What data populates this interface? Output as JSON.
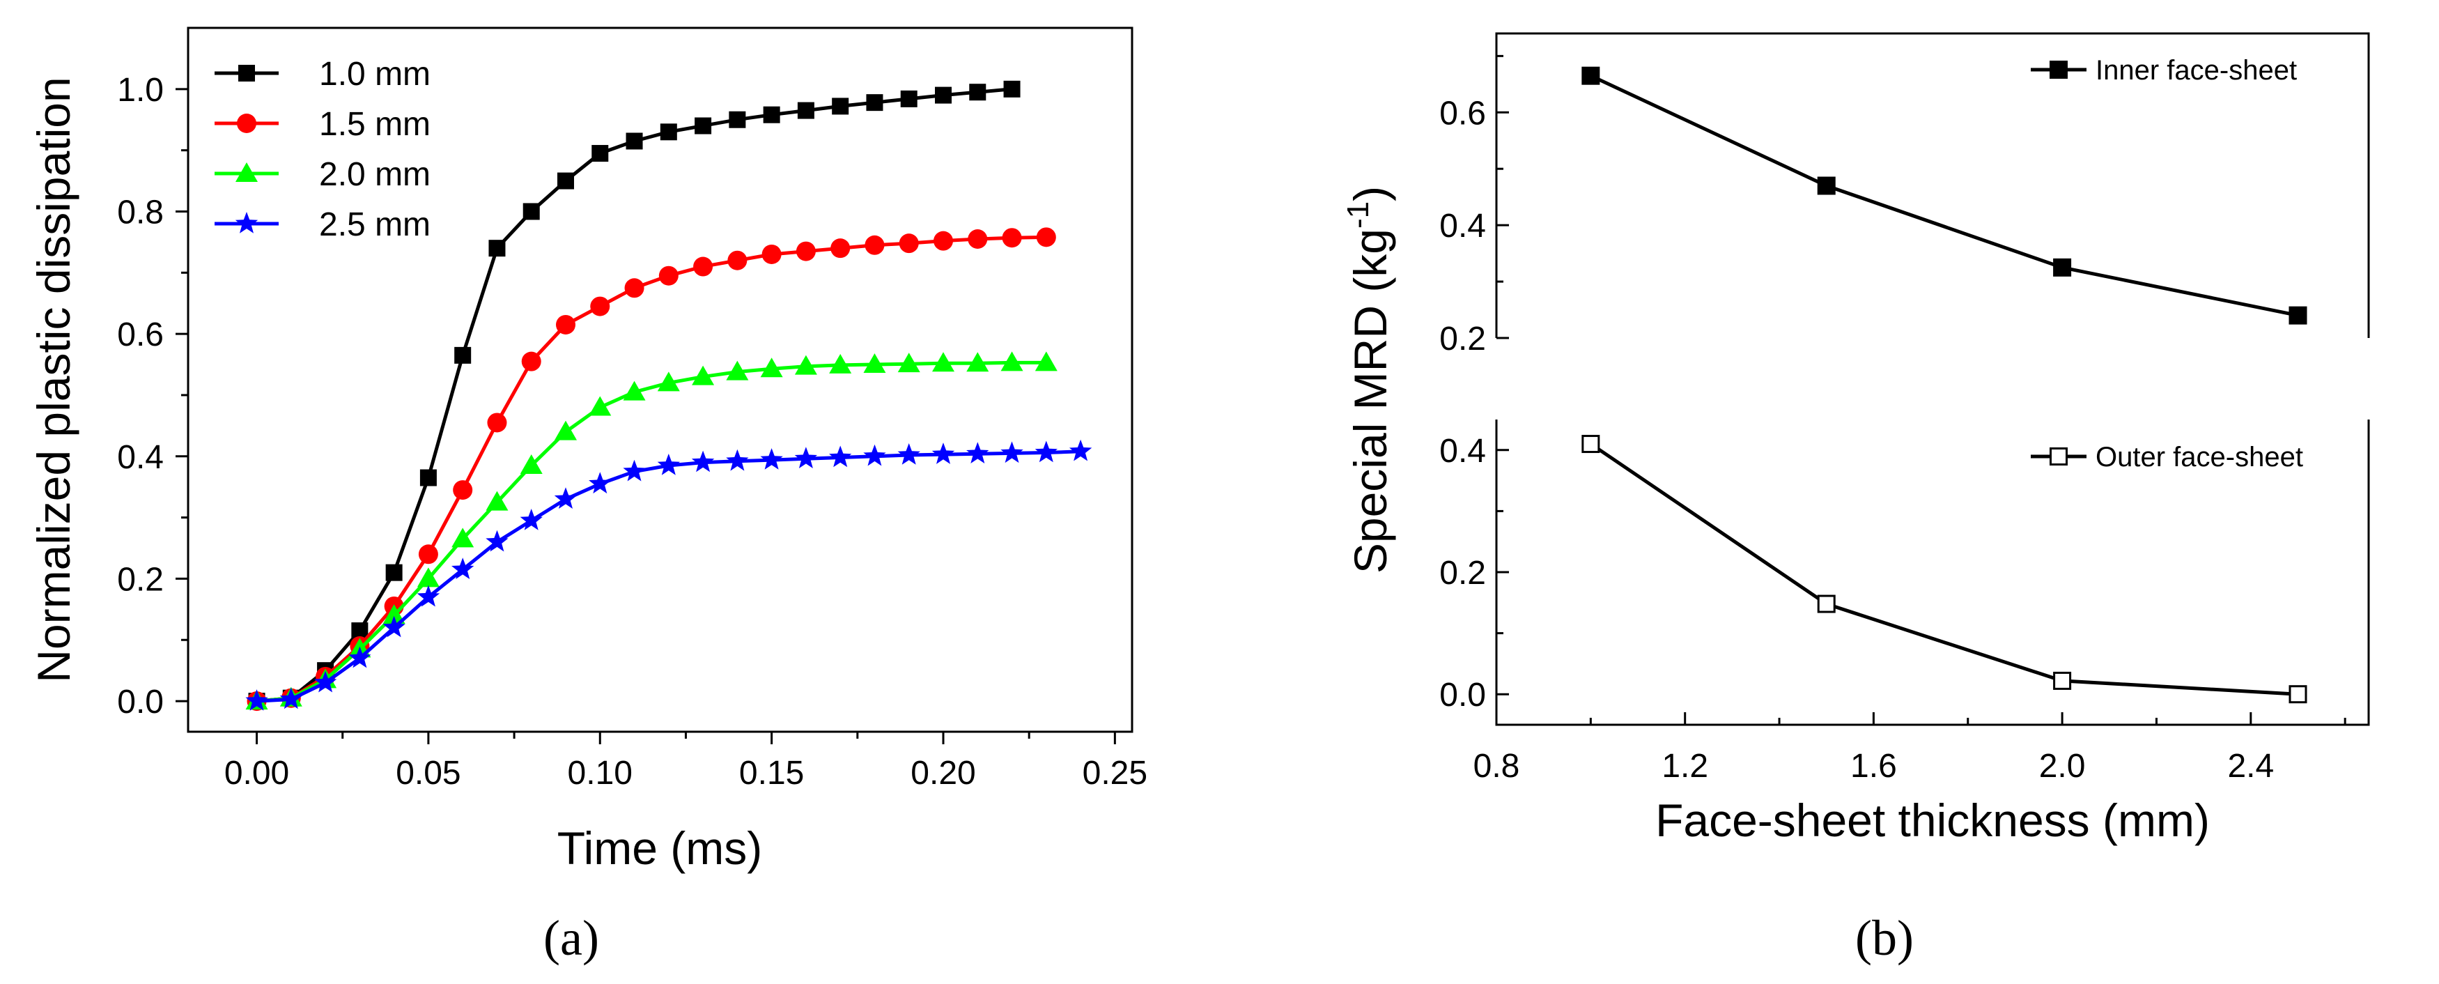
{
  "chart_data": [
    {
      "type": "line",
      "panel_label": "(a)",
      "xlabel": "Time (ms)",
      "ylabel": "Normalized plastic dissipation",
      "xlim": [
        -0.02,
        0.255
      ],
      "ylim": [
        -0.05,
        1.1
      ],
      "xticks": [
        "0.00",
        "0.05",
        "0.10",
        "0.15",
        "0.20",
        "0.25"
      ],
      "yticks": [
        "0.0",
        "0.2",
        "0.4",
        "0.6",
        "0.8",
        "1.0"
      ],
      "legend_position": "top-left",
      "series": [
        {
          "name": "1.0 mm",
          "color": "#000000",
          "marker": "square",
          "x": [
            0,
            0.01,
            0.02,
            0.03,
            0.04,
            0.05,
            0.06,
            0.07,
            0.08,
            0.09,
            0.1,
            0.11,
            0.12,
            0.13,
            0.14,
            0.15,
            0.16,
            0.17,
            0.18,
            0.19,
            0.2,
            0.21,
            0.22
          ],
          "y": [
            0,
            0.005,
            0.05,
            0.115,
            0.21,
            0.365,
            0.565,
            0.74,
            0.8,
            0.85,
            0.895,
            0.915,
            0.93,
            0.94,
            0.95,
            0.958,
            0.965,
            0.972,
            0.978,
            0.984,
            0.99,
            0.995,
            1.0
          ]
        },
        {
          "name": "1.5 mm",
          "color": "#ff0000",
          "marker": "circle",
          "x": [
            0,
            0.01,
            0.02,
            0.03,
            0.04,
            0.05,
            0.06,
            0.07,
            0.08,
            0.09,
            0.1,
            0.11,
            0.12,
            0.13,
            0.14,
            0.15,
            0.16,
            0.17,
            0.18,
            0.19,
            0.2,
            0.21,
            0.22,
            0.23
          ],
          "y": [
            0,
            0.005,
            0.04,
            0.09,
            0.155,
            0.24,
            0.345,
            0.455,
            0.555,
            0.615,
            0.645,
            0.675,
            0.695,
            0.71,
            0.72,
            0.73,
            0.735,
            0.74,
            0.745,
            0.748,
            0.752,
            0.755,
            0.757,
            0.758
          ]
        },
        {
          "name": "2.0 mm",
          "color": "#00ff00",
          "marker": "triangle",
          "x": [
            0,
            0.01,
            0.02,
            0.03,
            0.04,
            0.05,
            0.06,
            0.07,
            0.08,
            0.09,
            0.1,
            0.11,
            0.12,
            0.13,
            0.14,
            0.15,
            0.16,
            0.17,
            0.18,
            0.19,
            0.2,
            0.21,
            0.22,
            0.23
          ],
          "y": [
            0,
            0.005,
            0.035,
            0.085,
            0.14,
            0.2,
            0.265,
            0.325,
            0.385,
            0.44,
            0.48,
            0.505,
            0.52,
            0.53,
            0.538,
            0.543,
            0.547,
            0.549,
            0.55,
            0.551,
            0.552,
            0.552,
            0.553,
            0.553
          ]
        },
        {
          "name": "2.5 mm",
          "color": "#0000ff",
          "marker": "star",
          "x": [
            0,
            0.01,
            0.02,
            0.03,
            0.04,
            0.05,
            0.06,
            0.07,
            0.08,
            0.09,
            0.1,
            0.11,
            0.12,
            0.13,
            0.14,
            0.15,
            0.16,
            0.17,
            0.18,
            0.19,
            0.2,
            0.21,
            0.22,
            0.23,
            0.24
          ],
          "y": [
            0,
            0.003,
            0.03,
            0.07,
            0.12,
            0.17,
            0.215,
            0.26,
            0.295,
            0.33,
            0.355,
            0.375,
            0.385,
            0.39,
            0.392,
            0.394,
            0.396,
            0.398,
            0.4,
            0.402,
            0.403,
            0.404,
            0.405,
            0.406,
            0.408
          ]
        }
      ]
    },
    {
      "type": "line",
      "panel_label": "(b)",
      "xlabel": "Face-sheet thickness (mm)",
      "ylabel": "Special MRD (kg",
      "ylabel_sup": "-1",
      "ylabel_close": ")",
      "xlim": [
        0.8,
        2.65
      ],
      "xticks": [
        "0.8",
        "1.2",
        "1.6",
        "2.0",
        "2.4"
      ],
      "subplots": [
        {
          "name": "Inner face-sheet",
          "ylim": [
            0.2,
            0.74
          ],
          "yticks": [
            "0.2",
            "0.4",
            "0.6"
          ],
          "marker": "filled-square",
          "x": [
            1.0,
            1.5,
            2.0,
            2.5
          ],
          "y": [
            0.665,
            0.47,
            0.325,
            0.24
          ]
        },
        {
          "name": "Outer face-sheet",
          "ylim": [
            -0.05,
            0.45
          ],
          "yticks": [
            "0.0",
            "0.2",
            "0.4"
          ],
          "marker": "open-square",
          "x": [
            1.0,
            1.5,
            2.0,
            2.5
          ],
          "y": [
            0.41,
            0.148,
            0.022,
            0.0
          ]
        }
      ]
    }
  ]
}
